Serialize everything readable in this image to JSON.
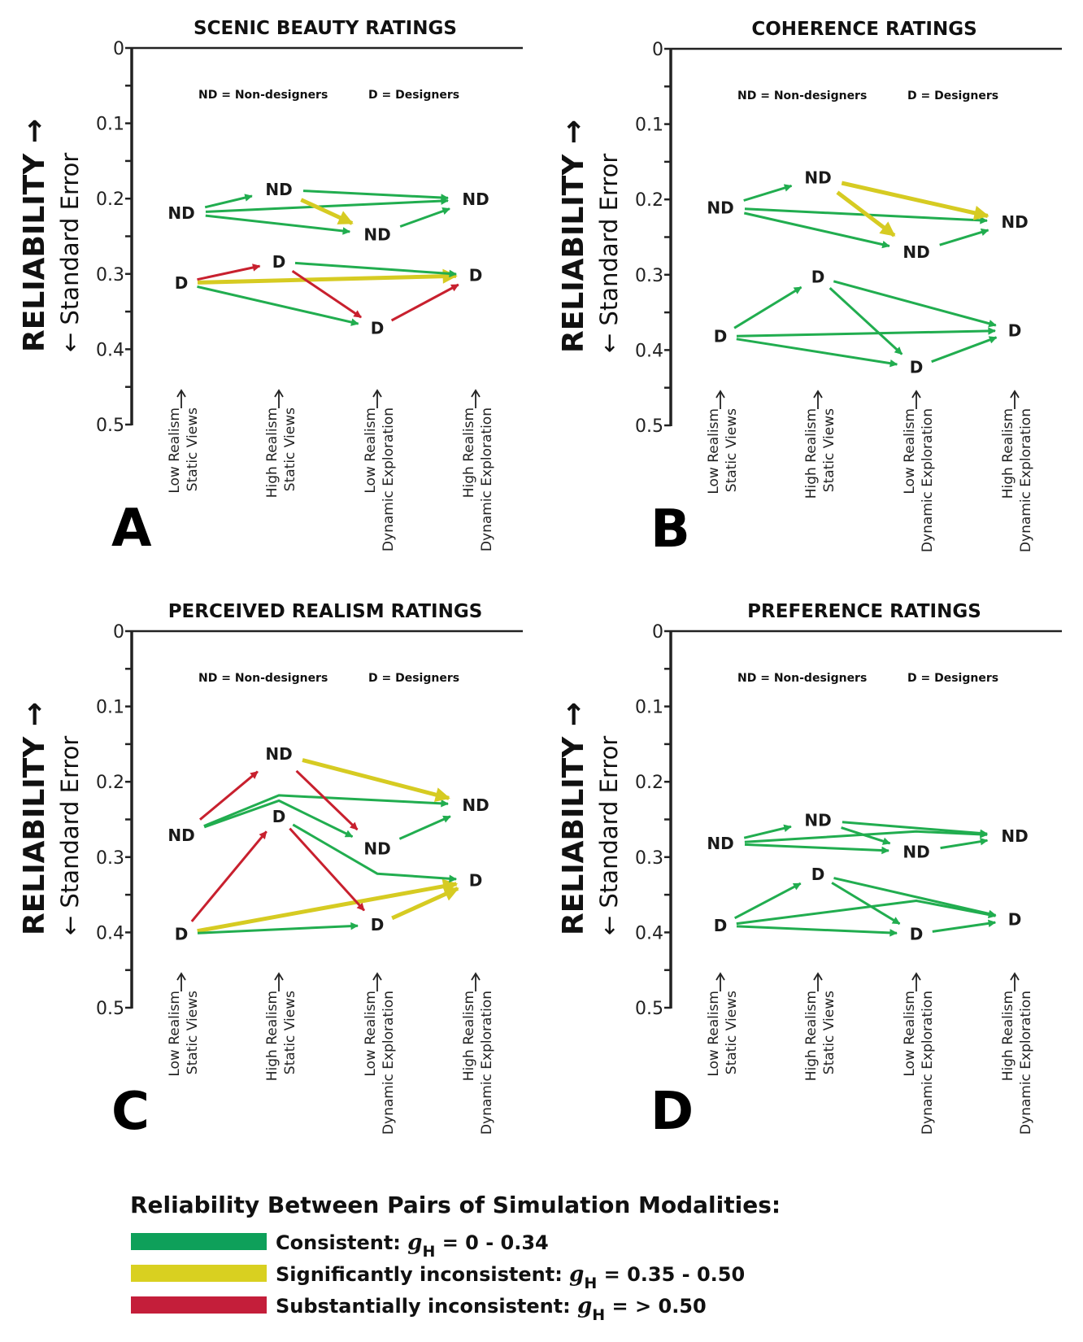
{
  "chart_data": [
    {
      "type": "diagram-line",
      "panel_letter": "A",
      "title": "SCENIC BEAUTY RATINGS",
      "ylabel_main": "RELIABILITY",
      "ylabel_sub": "Standard Error",
      "ylim": [
        0,
        0.5
      ],
      "yticks": [
        "0",
        "0.1",
        "0.2",
        "0.3",
        "0.4",
        "0.5"
      ],
      "categories": [
        [
          "Low Realism",
          "Static Views"
        ],
        [
          "High Realism",
          "Static Views"
        ],
        [
          "Low Realism",
          "Dynamic Exploration"
        ],
        [
          "High Realism",
          "Dynamic Exploration"
        ]
      ],
      "group_key": {
        "nd": "ND = Non-designers",
        "d": "D = Designers"
      },
      "series": [
        {
          "name": "ND",
          "values": [
            0.219,
            0.188,
            0.248,
            0.201
          ],
          "edges": [
            {
              "from": 0,
              "to": 1,
              "level": "consistent"
            },
            {
              "from": 0,
              "to": 3,
              "level": "consistent"
            },
            {
              "from": 0,
              "to": 2,
              "level": "consistent"
            },
            {
              "from": 1,
              "to": 3,
              "level": "consistent"
            },
            {
              "from": 1,
              "to": 2,
              "level": "significant"
            },
            {
              "from": 2,
              "to": 3,
              "level": "consistent"
            }
          ]
        },
        {
          "name": "D",
          "values": [
            0.312,
            0.284,
            0.372,
            0.302
          ],
          "edges": [
            {
              "from": 0,
              "to": 1,
              "level": "substantial"
            },
            {
              "from": 0,
              "to": 3,
              "level": "significant"
            },
            {
              "from": 0,
              "to": 2,
              "level": "consistent"
            },
            {
              "from": 1,
              "to": 3,
              "level": "consistent"
            },
            {
              "from": 1,
              "to": 2,
              "level": "substantial"
            },
            {
              "from": 2,
              "to": 3,
              "level": "substantial"
            }
          ]
        }
      ]
    },
    {
      "type": "diagram-line",
      "panel_letter": "B",
      "title": "COHERENCE RATINGS",
      "ylabel_main": "RELIABILITY",
      "ylabel_sub": "Standard Error",
      "ylim": [
        0,
        0.5
      ],
      "yticks": [
        "0",
        "0.1",
        "0.2",
        "0.3",
        "0.4",
        "0.5"
      ],
      "categories": [
        [
          "Low Realism",
          "Static Views"
        ],
        [
          "High Realism",
          "Static Views"
        ],
        [
          "Low Realism",
          "Dynamic Exploration"
        ],
        [
          "High Realism",
          "Dynamic Exploration"
        ]
      ],
      "group_key": {
        "nd": "ND = Non-designers",
        "d": "D = Designers"
      },
      "series": [
        {
          "name": "ND",
          "values": [
            0.211,
            0.171,
            0.27,
            0.23
          ],
          "edges": [
            {
              "from": 0,
              "to": 1,
              "level": "consistent"
            },
            {
              "from": 0,
              "to": 3,
              "level": "consistent"
            },
            {
              "from": 0,
              "to": 2,
              "level": "consistent"
            },
            {
              "from": 1,
              "to": 3,
              "level": "significant"
            },
            {
              "from": 1,
              "to": 2,
              "level": "significant"
            },
            {
              "from": 2,
              "to": 3,
              "level": "consistent"
            }
          ]
        },
        {
          "name": "D",
          "values": [
            0.382,
            0.303,
            0.423,
            0.374
          ],
          "edges": [
            {
              "from": 0,
              "to": 1,
              "level": "consistent"
            },
            {
              "from": 0,
              "to": 3,
              "level": "consistent"
            },
            {
              "from": 0,
              "to": 2,
              "level": "consistent"
            },
            {
              "from": 1,
              "to": 3,
              "level": "consistent"
            },
            {
              "from": 1,
              "to": 2,
              "level": "consistent"
            },
            {
              "from": 2,
              "to": 3,
              "level": "consistent"
            }
          ]
        }
      ]
    },
    {
      "type": "diagram-line",
      "panel_letter": "C",
      "title": "PERCEIVED REALISM RATINGS",
      "ylabel_main": "RELIABILITY",
      "ylabel_sub": "Standard Error",
      "ylim": [
        0,
        0.5
      ],
      "yticks": [
        "0",
        "0.1",
        "0.2",
        "0.3",
        "0.4",
        "0.5"
      ],
      "categories": [
        [
          "Low Realism",
          "Static Views"
        ],
        [
          "High Realism",
          "Static Views"
        ],
        [
          "Low Realism",
          "Dynamic Exploration"
        ],
        [
          "High Realism",
          "Dynamic Exploration"
        ]
      ],
      "group_key": {
        "nd": "ND = Non-designers",
        "d": "D = Designers"
      },
      "series": [
        {
          "name": "ND",
          "values": [
            0.271,
            0.163,
            0.289,
            0.231
          ],
          "edges": [
            {
              "from": 0,
              "to": 1,
              "level": "substantial"
            },
            {
              "from": 0,
              "to": 3,
              "level": "consistent",
              "via": [
                1,
                0.218
              ]
            },
            {
              "from": 0,
              "to": 2,
              "level": "consistent",
              "via": [
                1,
                0.225
              ]
            },
            {
              "from": 1,
              "to": 3,
              "level": "significant"
            },
            {
              "from": 1,
              "to": 2,
              "level": "substantial"
            },
            {
              "from": 2,
              "to": 3,
              "level": "consistent"
            }
          ]
        },
        {
          "name": "D",
          "values": [
            0.402,
            0.246,
            0.39,
            0.331
          ],
          "edges": [
            {
              "from": 0,
              "to": 1,
              "level": "substantial"
            },
            {
              "from": 0,
              "to": 3,
              "level": "significant"
            },
            {
              "from": 0,
              "to": 2,
              "level": "consistent"
            },
            {
              "from": 1,
              "to": 3,
              "level": "consistent",
              "via": [
                2,
                0.322
              ]
            },
            {
              "from": 1,
              "to": 2,
              "level": "substantial"
            },
            {
              "from": 2,
              "to": 3,
              "level": "significant"
            }
          ]
        }
      ]
    },
    {
      "type": "diagram-line",
      "panel_letter": "D",
      "title": "PREFERENCE RATINGS",
      "ylabel_main": "RELIABILITY",
      "ylabel_sub": "Standard Error",
      "ylim": [
        0,
        0.5
      ],
      "yticks": [
        "0",
        "0.1",
        "0.2",
        "0.3",
        "0.4",
        "0.5"
      ],
      "categories": [
        [
          "Low Realism",
          "Static Views"
        ],
        [
          "High Realism",
          "Static Views"
        ],
        [
          "Low Realism",
          "Dynamic Exploration"
        ],
        [
          "High Realism",
          "Dynamic Exploration"
        ]
      ],
      "group_key": {
        "nd": "ND = Non-designers",
        "d": "D = Designers"
      },
      "series": [
        {
          "name": "ND",
          "values": [
            0.282,
            0.251,
            0.293,
            0.272
          ],
          "edges": [
            {
              "from": 0,
              "to": 1,
              "level": "consistent"
            },
            {
              "from": 0,
              "to": 3,
              "level": "consistent",
              "via": [
                2,
                0.266
              ]
            },
            {
              "from": 0,
              "to": 2,
              "level": "consistent"
            },
            {
              "from": 1,
              "to": 3,
              "level": "consistent"
            },
            {
              "from": 1,
              "to": 2,
              "level": "consistent"
            },
            {
              "from": 2,
              "to": 3,
              "level": "consistent"
            }
          ]
        },
        {
          "name": "D",
          "values": [
            0.391,
            0.323,
            0.402,
            0.383
          ],
          "edges": [
            {
              "from": 0,
              "to": 1,
              "level": "consistent"
            },
            {
              "from": 0,
              "to": 3,
              "level": "consistent",
              "via": [
                2,
                0.358
              ]
            },
            {
              "from": 0,
              "to": 2,
              "level": "consistent"
            },
            {
              "from": 1,
              "to": 3,
              "level": "consistent"
            },
            {
              "from": 1,
              "to": 2,
              "level": "consistent"
            },
            {
              "from": 2,
              "to": 3,
              "level": "consistent"
            }
          ]
        }
      ]
    }
  ],
  "legend": {
    "heading": "Reliability Between Pairs of Simulation Modalities:",
    "items": [
      {
        "key": "consistent",
        "label": "Consistent: ",
        "symbol": "g",
        "subscript": "H",
        "range": " = 0 - 0.34",
        "color": "#0ea05a"
      },
      {
        "key": "significant",
        "label": "Significantly inconsistent: ",
        "symbol": "g",
        "subscript": "H",
        "range": " = 0.35 - 0.50",
        "color": "#d9d020"
      },
      {
        "key": "substantial",
        "label": "Substantially inconsistent: ",
        "symbol": "g",
        "subscript": "H",
        "range": " = > 0.50",
        "color": "#c41e3a"
      }
    ]
  },
  "arrow_colors": {
    "consistent": "#21ad4f",
    "significant": "#d6cb22",
    "substantial": "#c8202e"
  }
}
